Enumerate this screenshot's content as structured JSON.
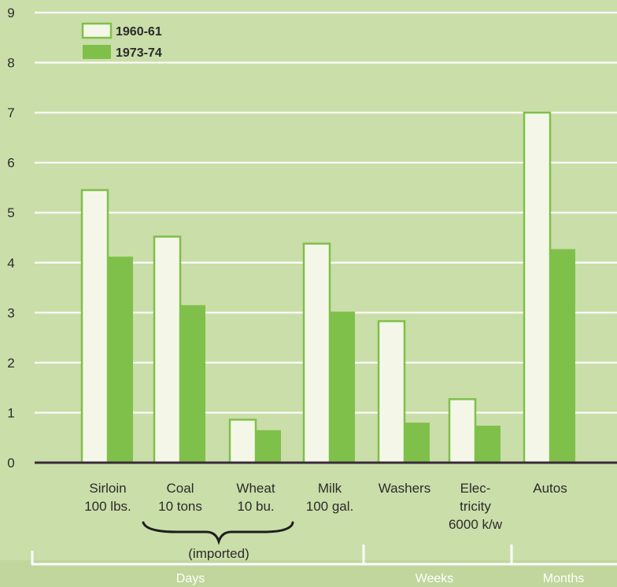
{
  "chart_data": {
    "type": "bar",
    "categories": [
      [
        "Sirloin",
        "100 lbs."
      ],
      [
        "Coal",
        "10 tons"
      ],
      [
        "Wheat",
        "10 bu."
      ],
      [
        "Milk",
        "100 gal."
      ],
      [
        "Washers"
      ],
      [
        "Elec-",
        "tricity",
        "6000 k/w"
      ],
      [
        "Autos"
      ]
    ],
    "series": [
      {
        "name": "1960-61",
        "values": [
          5.45,
          4.52,
          0.86,
          4.38,
          2.83,
          1.27,
          7.0
        ]
      },
      {
        "name": "1973-74",
        "values": [
          4.12,
          3.15,
          0.65,
          3.02,
          0.8,
          0.74,
          4.27
        ]
      }
    ],
    "ylim": [
      0,
      9
    ],
    "yticks": [
      "0",
      "1",
      "2",
      "3",
      "4",
      "5",
      "6",
      "7",
      "8",
      "9"
    ],
    "grid": true,
    "legend_position": "top-left",
    "bracket_label": "(imported)",
    "groups": [
      "Days",
      "Weeks",
      "Months"
    ],
    "colors": {
      "background": "#cadea9",
      "series_1960_fill": "#f4f7e8",
      "series_1960_edge": "#7fc04a",
      "series_1973_fill": "#7fc04a",
      "grid": "#ffffff",
      "baseline": "#3a2a3a",
      "text": "#2b2b2b"
    }
  }
}
